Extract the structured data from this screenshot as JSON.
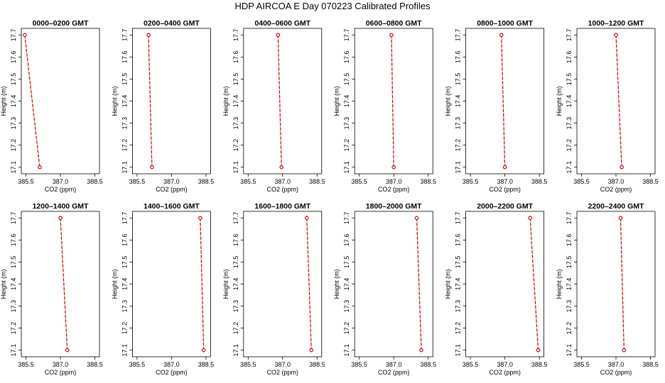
{
  "figure": {
    "title": "HDP  AIRCOA E  Day 070223  Calibrated Profiles"
  },
  "style": {
    "line_color": "#dd0000",
    "marker_color": "#dd0000",
    "axis_color": "#000000"
  },
  "chart_data": [
    {
      "type": "line",
      "title": "0000–0200 GMT",
      "xlabel": "CO2 (ppm)",
      "ylabel": "Height (m)",
      "xlim": [
        385.3,
        388.7
      ],
      "ylim": [
        17.07,
        17.73
      ],
      "xticks": [
        "385.5",
        "387.0",
        "388.5"
      ],
      "xtick_values": [
        385.5,
        387.0,
        388.5
      ],
      "yticks": [
        "17.1",
        "17.2",
        "17.3",
        "17.4",
        "17.5",
        "17.6",
        "17.7"
      ],
      "ytick_values": [
        17.1,
        17.2,
        17.3,
        17.4,
        17.5,
        17.6,
        17.7
      ],
      "series": [
        {
          "x": [
            385.45,
            386.1
          ],
          "y": [
            17.7,
            17.1
          ]
        }
      ]
    },
    {
      "type": "line",
      "title": "0200–0400 GMT",
      "xlabel": "CO2 (ppm)",
      "ylabel": "Height (m)",
      "xlim": [
        385.3,
        388.7
      ],
      "ylim": [
        17.07,
        17.73
      ],
      "xticks": [
        "385.5",
        "387.0",
        "388.5"
      ],
      "xtick_values": [
        385.5,
        387.0,
        388.5
      ],
      "yticks": [
        "17.1",
        "17.2",
        "17.3",
        "17.4",
        "17.5",
        "17.6",
        "17.7"
      ],
      "ytick_values": [
        17.1,
        17.2,
        17.3,
        17.4,
        17.5,
        17.6,
        17.7
      ],
      "series": [
        {
          "x": [
            386.0,
            386.15
          ],
          "y": [
            17.7,
            17.1
          ]
        }
      ]
    },
    {
      "type": "line",
      "title": "0400–0600 GMT",
      "xlabel": "CO2 (ppm)",
      "ylabel": "Height (m)",
      "xlim": [
        385.3,
        388.7
      ],
      "ylim": [
        17.07,
        17.73
      ],
      "xticks": [
        "385.5",
        "387.0",
        "388.5"
      ],
      "xtick_values": [
        385.5,
        387.0,
        388.5
      ],
      "yticks": [
        "17.1",
        "17.2",
        "17.3",
        "17.4",
        "17.5",
        "17.6",
        "17.7"
      ],
      "ytick_values": [
        17.1,
        17.2,
        17.3,
        17.4,
        17.5,
        17.6,
        17.7
      ],
      "series": [
        {
          "x": [
            386.8,
            386.95
          ],
          "y": [
            17.7,
            17.1
          ]
        }
      ]
    },
    {
      "type": "line",
      "title": "0600–0800 GMT",
      "xlabel": "CO2 (ppm)",
      "ylabel": "Height (m)",
      "xlim": [
        385.3,
        388.7
      ],
      "ylim": [
        17.07,
        17.73
      ],
      "xticks": [
        "385.5",
        "387.0",
        "388.5"
      ],
      "xtick_values": [
        385.5,
        387.0,
        388.5
      ],
      "yticks": [
        "17.1",
        "17.2",
        "17.3",
        "17.4",
        "17.5",
        "17.6",
        "17.7"
      ],
      "ytick_values": [
        17.1,
        17.2,
        17.3,
        17.4,
        17.5,
        17.6,
        17.7
      ],
      "series": [
        {
          "x": [
            386.9,
            387.0
          ],
          "y": [
            17.7,
            17.1
          ]
        }
      ]
    },
    {
      "type": "line",
      "title": "0800–1000 GMT",
      "xlabel": "CO2 (ppm)",
      "ylabel": "Height (m)",
      "xlim": [
        385.3,
        388.7
      ],
      "ylim": [
        17.07,
        17.73
      ],
      "xticks": [
        "385.5",
        "387.0",
        "388.5"
      ],
      "xtick_values": [
        385.5,
        387.0,
        388.5
      ],
      "yticks": [
        "17.1",
        "17.2",
        "17.3",
        "17.4",
        "17.5",
        "17.6",
        "17.7"
      ],
      "ytick_values": [
        17.1,
        17.2,
        17.3,
        17.4,
        17.5,
        17.6,
        17.7
      ],
      "series": [
        {
          "x": [
            386.85,
            387.0
          ],
          "y": [
            17.7,
            17.1
          ]
        }
      ]
    },
    {
      "type": "line",
      "title": "1000–1200 GMT",
      "xlabel": "CO2 (ppm)",
      "ylabel": "Height (m)",
      "xlim": [
        385.3,
        388.7
      ],
      "ylim": [
        17.07,
        17.73
      ],
      "xticks": [
        "385.5",
        "387.0",
        "388.5"
      ],
      "xtick_values": [
        385.5,
        387.0,
        388.5
      ],
      "yticks": [
        "17.1",
        "17.2",
        "17.3",
        "17.4",
        "17.5",
        "17.6",
        "17.7"
      ],
      "ytick_values": [
        17.1,
        17.2,
        17.3,
        17.4,
        17.5,
        17.6,
        17.7
      ],
      "series": [
        {
          "x": [
            387.0,
            387.25
          ],
          "y": [
            17.7,
            17.1
          ]
        }
      ]
    },
    {
      "type": "line",
      "title": "1200–1400 GMT",
      "xlabel": "CO2 (ppm)",
      "ylabel": "Height (m)",
      "xlim": [
        385.3,
        388.7
      ],
      "ylim": [
        17.07,
        17.73
      ],
      "xticks": [
        "385.5",
        "387.0",
        "388.5"
      ],
      "xtick_values": [
        385.5,
        387.0,
        388.5
      ],
      "yticks": [
        "17.1",
        "17.2",
        "17.3",
        "17.4",
        "17.5",
        "17.6",
        "17.7"
      ],
      "ytick_values": [
        17.1,
        17.2,
        17.3,
        17.4,
        17.5,
        17.6,
        17.7
      ],
      "series": [
        {
          "x": [
            387.0,
            387.3
          ],
          "y": [
            17.7,
            17.1
          ]
        }
      ]
    },
    {
      "type": "line",
      "title": "1400–1600 GMT",
      "xlabel": "CO2 (ppm)",
      "ylabel": "Height (m)",
      "xlim": [
        385.3,
        388.7
      ],
      "ylim": [
        17.07,
        17.73
      ],
      "xticks": [
        "385.5",
        "387.0",
        "388.5"
      ],
      "xtick_values": [
        385.5,
        387.0,
        388.5
      ],
      "yticks": [
        "17.1",
        "17.2",
        "17.3",
        "17.4",
        "17.5",
        "17.6",
        "17.7"
      ],
      "ytick_values": [
        17.1,
        17.2,
        17.3,
        17.4,
        17.5,
        17.6,
        17.7
      ],
      "series": [
        {
          "x": [
            388.25,
            388.4
          ],
          "y": [
            17.7,
            17.1
          ]
        }
      ]
    },
    {
      "type": "line",
      "title": "1600–1800 GMT",
      "xlabel": "CO2 (ppm)",
      "ylabel": "Height (m)",
      "xlim": [
        385.3,
        388.7
      ],
      "ylim": [
        17.07,
        17.73
      ],
      "xticks": [
        "385.5",
        "387.0",
        "388.5"
      ],
      "xtick_values": [
        385.5,
        387.0,
        388.5
      ],
      "yticks": [
        "17.1",
        "17.2",
        "17.3",
        "17.4",
        "17.5",
        "17.6",
        "17.7"
      ],
      "ytick_values": [
        17.1,
        17.2,
        17.3,
        17.4,
        17.5,
        17.6,
        17.7
      ],
      "series": [
        {
          "x": [
            388.05,
            388.25
          ],
          "y": [
            17.7,
            17.1
          ]
        }
      ]
    },
    {
      "type": "line",
      "title": "1800–2000 GMT",
      "xlabel": "CO2 (ppm)",
      "ylabel": "Height (m)",
      "xlim": [
        385.3,
        388.7
      ],
      "ylim": [
        17.07,
        17.73
      ],
      "xticks": [
        "385.5",
        "387.0",
        "388.5"
      ],
      "xtick_values": [
        385.5,
        387.0,
        388.5
      ],
      "yticks": [
        "17.1",
        "17.2",
        "17.3",
        "17.4",
        "17.5",
        "17.6",
        "17.7"
      ],
      "ytick_values": [
        17.1,
        17.2,
        17.3,
        17.4,
        17.5,
        17.6,
        17.7
      ],
      "series": [
        {
          "x": [
            388.0,
            388.2
          ],
          "y": [
            17.7,
            17.1
          ]
        }
      ]
    },
    {
      "type": "line",
      "title": "2000–2200 GMT",
      "xlabel": "CO2 (ppm)",
      "ylabel": "Height (m)",
      "xlim": [
        385.3,
        388.7
      ],
      "ylim": [
        17.07,
        17.73
      ],
      "xticks": [
        "385.5",
        "387.0",
        "388.5"
      ],
      "xtick_values": [
        385.5,
        387.0,
        388.5
      ],
      "yticks": [
        "17.1",
        "17.2",
        "17.3",
        "17.4",
        "17.5",
        "17.6",
        "17.7"
      ],
      "ytick_values": [
        17.1,
        17.2,
        17.3,
        17.4,
        17.5,
        17.6,
        17.7
      ],
      "series": [
        {
          "x": [
            388.1,
            388.45
          ],
          "y": [
            17.7,
            17.1
          ]
        }
      ]
    },
    {
      "type": "line",
      "title": "2200–2400 GMT",
      "xlabel": "CO2 (ppm)",
      "ylabel": "Height (m)",
      "xlim": [
        385.3,
        388.7
      ],
      "ylim": [
        17.07,
        17.73
      ],
      "xticks": [
        "385.5",
        "387.0",
        "388.5"
      ],
      "xtick_values": [
        385.5,
        387.0,
        388.5
      ],
      "yticks": [
        "17.1",
        "17.2",
        "17.3",
        "17.4",
        "17.5",
        "17.6",
        "17.7"
      ],
      "ytick_values": [
        17.1,
        17.2,
        17.3,
        17.4,
        17.5,
        17.6,
        17.7
      ],
      "series": [
        {
          "x": [
            387.2,
            387.35
          ],
          "y": [
            17.7,
            17.1
          ]
        }
      ]
    }
  ]
}
